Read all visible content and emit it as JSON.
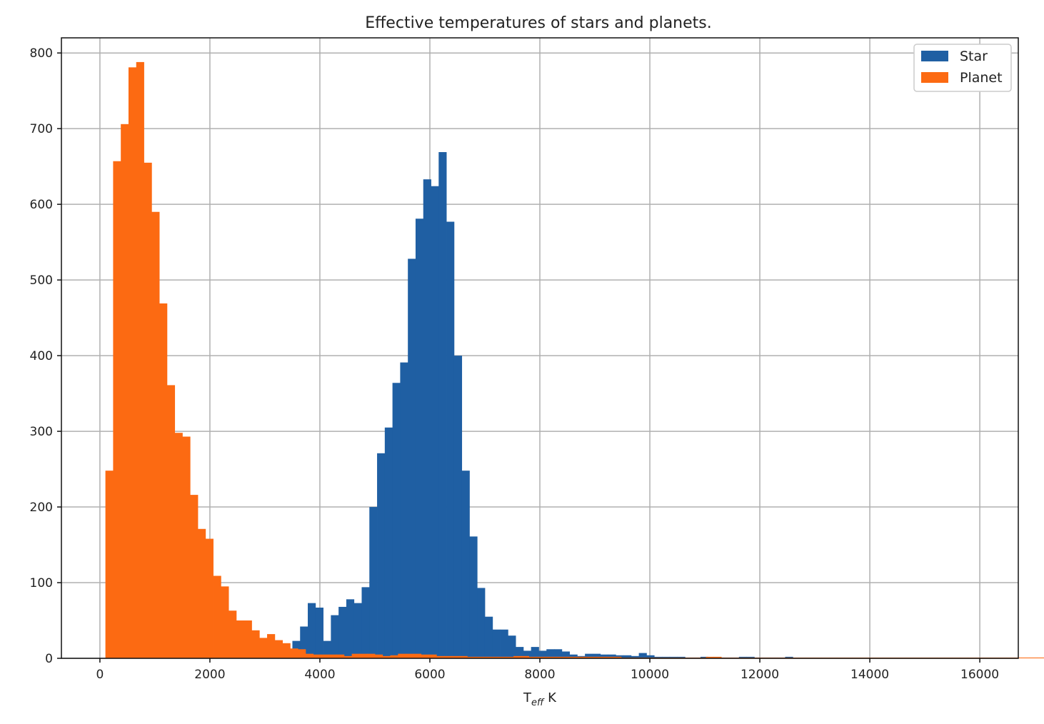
{
  "chart_data": {
    "type": "bar",
    "title": "Effective temperatures of stars and planets.",
    "xlabel": {
      "main": "T",
      "subscript": "eff",
      "unit": " K"
    },
    "ylabel": "",
    "xlim": [
      -700,
      16700
    ],
    "ylim": [
      0,
      820
    ],
    "grid": true,
    "legend_position": "top-right",
    "xticks": [
      0,
      2000,
      4000,
      6000,
      8000,
      10000,
      12000,
      14000,
      16000
    ],
    "xtick_labels": [
      "0",
      "2000",
      "4000",
      "6000",
      "8000",
      "10000",
      "12000",
      "14000",
      "16000"
    ],
    "yticks": [
      0,
      100,
      200,
      300,
      400,
      500,
      600,
      700,
      800
    ],
    "ytick_labels": [
      "0",
      "100",
      "200",
      "300",
      "400",
      "500",
      "600",
      "700",
      "800"
    ],
    "bin_width": 140,
    "series": [
      {
        "name": "Star",
        "color": "#1f5fa3",
        "bins_start": 3500,
        "values": [
          23,
          42,
          73,
          67,
          23,
          57,
          68,
          78,
          73,
          94,
          200,
          271,
          305,
          364,
          391,
          528,
          581,
          633,
          624,
          669,
          577,
          400,
          248,
          161,
          93,
          55,
          38,
          38,
          30,
          15,
          10,
          15,
          10,
          12,
          12,
          9,
          5,
          3,
          6,
          6,
          5,
          5,
          4,
          4,
          3,
          7,
          4,
          2,
          2,
          2,
          2,
          1,
          1,
          2,
          1,
          1,
          1,
          1,
          2,
          2,
          1,
          1,
          1,
          1,
          2,
          0,
          0,
          0,
          0,
          0,
          0,
          0,
          0,
          0,
          0,
          0,
          0,
          0,
          0,
          0,
          0,
          0,
          0,
          0,
          0,
          0,
          0,
          0,
          0,
          0,
          0,
          0,
          0,
          0,
          0,
          0,
          0,
          0,
          0,
          0,
          0,
          0,
          0,
          0,
          0,
          0,
          0,
          0,
          0,
          0,
          0,
          0,
          0,
          0,
          0,
          0,
          0,
          0,
          0,
          0,
          0,
          0,
          0,
          0,
          0,
          0,
          0,
          0,
          0,
          0,
          0,
          0,
          0,
          0,
          0,
          0,
          0,
          0,
          0,
          0,
          0,
          0,
          0,
          0,
          0,
          0,
          0,
          0,
          0,
          0,
          0,
          0,
          0,
          0,
          0,
          0,
          0,
          0,
          0,
          0,
          0,
          0,
          0,
          0,
          0,
          0,
          0,
          0,
          0,
          0,
          0,
          0,
          0,
          0,
          0,
          0,
          0,
          0,
          0,
          0,
          0,
          0,
          0,
          0,
          0,
          0,
          0,
          0,
          0,
          0,
          0,
          0,
          0,
          0,
          0,
          0,
          0,
          2
        ]
      },
      {
        "name": "Planet",
        "color": "#fc6a12",
        "bins_start": 100,
        "values": [
          248,
          657,
          706,
          781,
          788,
          655,
          590,
          469,
          361,
          298,
          293,
          216,
          171,
          158,
          109,
          95,
          63,
          50,
          50,
          37,
          27,
          32,
          24,
          20,
          13,
          12,
          6,
          5,
          5,
          5,
          5,
          3,
          6,
          6,
          6,
          5,
          3,
          4,
          6,
          6,
          6,
          5,
          5,
          3,
          3,
          3,
          3,
          2,
          2,
          2,
          2,
          2,
          2,
          3,
          3,
          2,
          2,
          2,
          2,
          2,
          2,
          2,
          2,
          2,
          2,
          2,
          2,
          1,
          1,
          1,
          1,
          1,
          1,
          1,
          1,
          1,
          1,
          1,
          2,
          2,
          1,
          1,
          1,
          1,
          1,
          1,
          1,
          1,
          1,
          1,
          1,
          1,
          1,
          1,
          1,
          1,
          1,
          1,
          1,
          1,
          1,
          1,
          1,
          1,
          1,
          1,
          1,
          1,
          1,
          1,
          1,
          1,
          1,
          1,
          1,
          1,
          1,
          1,
          1,
          1,
          1,
          1,
          1,
          1,
          1,
          1,
          1,
          1,
          1,
          1,
          1,
          1,
          1,
          1,
          1,
          1,
          1,
          1,
          1,
          1,
          1,
          1,
          1,
          1,
          1,
          1,
          1,
          1,
          1,
          1,
          1,
          1,
          1,
          1,
          1,
          1,
          1,
          1,
          1,
          1,
          1,
          1,
          1,
          1,
          1,
          1,
          1,
          1,
          1,
          1,
          1,
          1,
          1,
          1,
          1,
          1,
          1,
          1,
          1,
          1,
          1,
          1,
          1,
          1,
          1,
          1,
          1,
          1,
          1,
          1,
          1,
          1,
          1,
          1,
          1,
          1,
          1,
          1,
          1,
          1,
          1,
          1,
          1,
          1
        ]
      }
    ]
  }
}
